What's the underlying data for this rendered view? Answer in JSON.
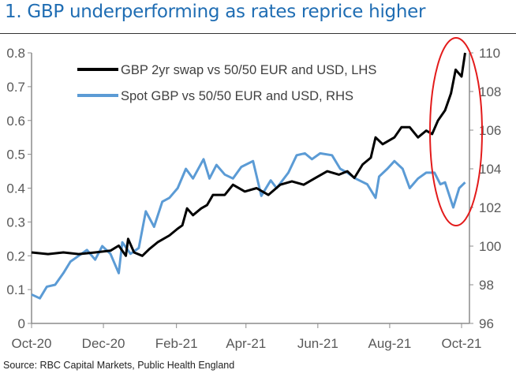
{
  "title": "1. GBP underperforming as rates reprice higher",
  "source": "Source: RBC Capital Markets, Public Health England",
  "colors": {
    "title": "#1f6db3",
    "series_black": "#000000",
    "series_blue": "#5b9bd5",
    "annotation": "#e31b1b",
    "axis": "#8c8c8c"
  },
  "chart_data": {
    "type": "line",
    "title": "1. GBP underperforming as rates reprice higher",
    "x_ticks": [
      {
        "date": "2020-10-01",
        "label": "Oct-20"
      },
      {
        "date": "2020-12-01",
        "label": "Dec-20"
      },
      {
        "date": "2021-02-01",
        "label": "Feb-21"
      },
      {
        "date": "2021-04-01",
        "label": "Apr-21"
      },
      {
        "date": "2021-06-01",
        "label": "Jun-21"
      },
      {
        "date": "2021-08-01",
        "label": "Aug-21"
      },
      {
        "date": "2021-10-01",
        "label": "Oct-21"
      }
    ],
    "xlim": [
      "2020-10-01",
      "2021-10-08"
    ],
    "y_left": {
      "ylim": [
        0,
        0.8
      ],
      "ticks": [
        "0",
        "0.1",
        "0.2",
        "0.3",
        "0.4",
        "0.5",
        "0.6",
        "0.7",
        "0.8"
      ]
    },
    "y_right": {
      "ylim": [
        96,
        110
      ],
      "ticks": [
        "96",
        "98",
        "100",
        "102",
        "104",
        "106",
        "108",
        "110"
      ]
    },
    "grid": false,
    "legend": "top-left",
    "annotation": "red ellipse around Sep-Oct 2021 moves",
    "series": [
      {
        "name": "GBP 2yr swap vs 50/50 EUR and USD, LHS",
        "axis": "left",
        "color": "#000000",
        "points": [
          [
            "2020-10-01",
            0.21
          ],
          [
            "2020-10-15",
            0.205
          ],
          [
            "2020-10-28",
            0.21
          ],
          [
            "2020-11-10",
            0.205
          ],
          [
            "2020-11-24",
            0.21
          ],
          [
            "2020-12-07",
            0.215
          ],
          [
            "2020-12-14",
            0.23
          ],
          [
            "2020-12-20",
            0.2
          ],
          [
            "2020-12-22",
            0.25
          ],
          [
            "2020-12-27",
            0.21
          ],
          [
            "2021-01-03",
            0.2
          ],
          [
            "2021-01-09",
            0.22
          ],
          [
            "2021-01-16",
            0.24
          ],
          [
            "2021-01-26",
            0.26
          ],
          [
            "2021-02-02",
            0.28
          ],
          [
            "2021-02-06",
            0.29
          ],
          [
            "2021-02-10",
            0.34
          ],
          [
            "2021-02-15",
            0.32
          ],
          [
            "2021-02-22",
            0.34
          ],
          [
            "2021-02-27",
            0.35
          ],
          [
            "2021-03-04",
            0.38
          ],
          [
            "2021-03-14",
            0.38
          ],
          [
            "2021-03-21",
            0.41
          ],
          [
            "2021-03-31",
            0.39
          ],
          [
            "2021-04-10",
            0.4
          ],
          [
            "2021-04-20",
            0.38
          ],
          [
            "2021-04-30",
            0.41
          ],
          [
            "2021-05-10",
            0.42
          ],
          [
            "2021-05-20",
            0.41
          ],
          [
            "2021-05-30",
            0.43
          ],
          [
            "2021-06-09",
            0.45
          ],
          [
            "2021-06-19",
            0.44
          ],
          [
            "2021-06-26",
            0.45
          ],
          [
            "2021-07-02",
            0.43
          ],
          [
            "2021-07-09",
            0.47
          ],
          [
            "2021-07-16",
            0.49
          ],
          [
            "2021-07-20",
            0.55
          ],
          [
            "2021-07-26",
            0.53
          ],
          [
            "2021-08-05",
            0.55
          ],
          [
            "2021-08-11",
            0.58
          ],
          [
            "2021-08-18",
            0.58
          ],
          [
            "2021-08-25",
            0.55
          ],
          [
            "2021-09-01",
            0.57
          ],
          [
            "2021-09-06",
            0.56
          ],
          [
            "2021-09-11",
            0.6
          ],
          [
            "2021-09-17",
            0.63
          ],
          [
            "2021-09-22",
            0.68
          ],
          [
            "2021-09-26",
            0.75
          ],
          [
            "2021-10-01",
            0.73
          ],
          [
            "2021-10-04",
            0.8
          ]
        ]
      },
      {
        "name": "Spot GBP vs 50/50 EUR and USD, RHS",
        "axis": "right",
        "color": "#5b9bd5",
        "points": [
          [
            "2020-10-01",
            97.5
          ],
          [
            "2020-10-08",
            97.3
          ],
          [
            "2020-10-14",
            97.9
          ],
          [
            "2020-10-21",
            98.0
          ],
          [
            "2020-10-28",
            98.6
          ],
          [
            "2020-11-03",
            99.2
          ],
          [
            "2020-11-10",
            99.5
          ],
          [
            "2020-11-17",
            99.8
          ],
          [
            "2020-11-24",
            99.3
          ],
          [
            "2020-11-30",
            100.0
          ],
          [
            "2020-12-07",
            99.6
          ],
          [
            "2020-12-14",
            98.6
          ],
          [
            "2020-12-17",
            100.2
          ],
          [
            "2020-12-24",
            99.6
          ],
          [
            "2020-12-31",
            99.9
          ],
          [
            "2021-01-06",
            101.8
          ],
          [
            "2021-01-13",
            101.0
          ],
          [
            "2021-01-20",
            102.3
          ],
          [
            "2021-01-26",
            102.5
          ],
          [
            "2021-02-02",
            103.0
          ],
          [
            "2021-02-09",
            104.0
          ],
          [
            "2021-02-15",
            103.5
          ],
          [
            "2021-02-24",
            104.5
          ],
          [
            "2021-03-01",
            103.5
          ],
          [
            "2021-03-07",
            104.2
          ],
          [
            "2021-03-14",
            103.7
          ],
          [
            "2021-03-21",
            103.5
          ],
          [
            "2021-03-28",
            104.1
          ],
          [
            "2021-04-07",
            104.4
          ],
          [
            "2021-04-14",
            102.6
          ],
          [
            "2021-04-22",
            103.4
          ],
          [
            "2021-04-27",
            103.0
          ],
          [
            "2021-05-07",
            103.8
          ],
          [
            "2021-05-14",
            104.7
          ],
          [
            "2021-05-21",
            104.8
          ],
          [
            "2021-05-27",
            104.5
          ],
          [
            "2021-06-03",
            104.8
          ],
          [
            "2021-06-13",
            104.7
          ],
          [
            "2021-06-20",
            104.0
          ],
          [
            "2021-06-26",
            103.8
          ],
          [
            "2021-07-03",
            103.5
          ],
          [
            "2021-07-13",
            103.2
          ],
          [
            "2021-07-20",
            102.5
          ],
          [
            "2021-07-23",
            103.6
          ],
          [
            "2021-07-30",
            104.0
          ],
          [
            "2021-08-05",
            104.4
          ],
          [
            "2021-08-12",
            104.0
          ],
          [
            "2021-08-18",
            103.0
          ],
          [
            "2021-08-25",
            103.5
          ],
          [
            "2021-09-01",
            103.8
          ],
          [
            "2021-09-08",
            103.8
          ],
          [
            "2021-09-13",
            103.2
          ],
          [
            "2021-09-17",
            103.3
          ],
          [
            "2021-09-24",
            102.0
          ],
          [
            "2021-09-29",
            103.0
          ],
          [
            "2021-10-04",
            103.3
          ]
        ]
      }
    ]
  }
}
